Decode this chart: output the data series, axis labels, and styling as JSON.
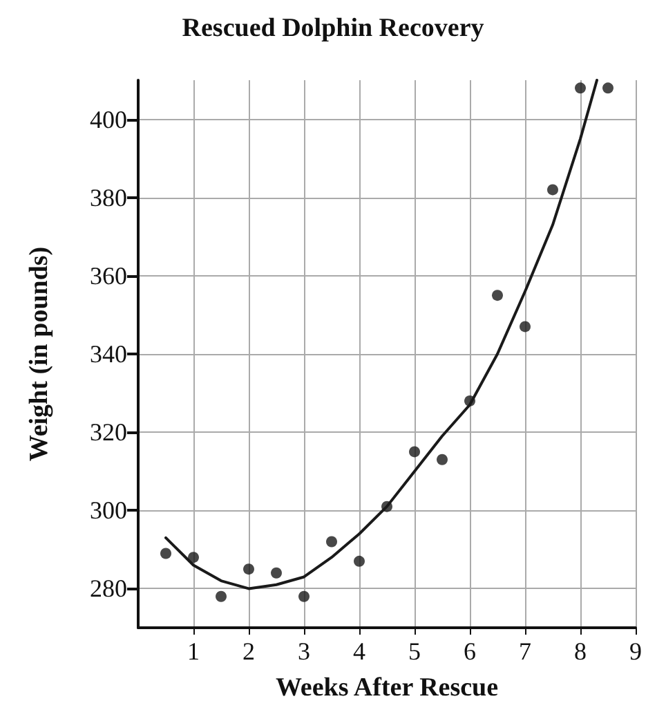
{
  "chart_data": {
    "type": "scatter",
    "title": "Rescued Dolphin Recovery",
    "xlabel": "Weeks After Rescue",
    "ylabel": "Weight (in pounds)",
    "series": [
      {
        "color": "#1a1a1a",
        "x": [
          0.5,
          1,
          1.5,
          2,
          2.5,
          3,
          3.5,
          4,
          4.5,
          5,
          5.5,
          6,
          6.5,
          7,
          7.5,
          8,
          8.5
        ],
        "values": [
          289,
          288,
          278,
          285,
          284,
          278,
          292,
          287,
          301,
          315,
          313,
          328,
          355,
          347,
          382,
          408,
          408
        ]
      },
      {
        "type": "line",
        "marker": "none",
        "color": "#1a1a1a",
        "x": [
          0.5,
          1,
          1.5,
          2,
          2.5,
          3,
          3.5,
          4,
          4.5,
          5,
          5.5,
          6,
          6.5,
          7,
          7.5,
          8,
          8.3
        ],
        "values": [
          293,
          286,
          282,
          280,
          281,
          283,
          288,
          294,
          301,
          310,
          319,
          327,
          340,
          356,
          373,
          395,
          410
        ]
      }
    ],
    "xlim": [
      0,
      9
    ],
    "xticks": [
      1,
      2,
      3,
      4,
      5,
      6,
      7,
      8,
      9
    ],
    "ylim": [
      270,
      410
    ],
    "yticks": [
      280,
      300,
      320,
      340,
      360,
      380,
      400
    ],
    "grid": true,
    "marker": "circle",
    "line_style": "solid"
  }
}
